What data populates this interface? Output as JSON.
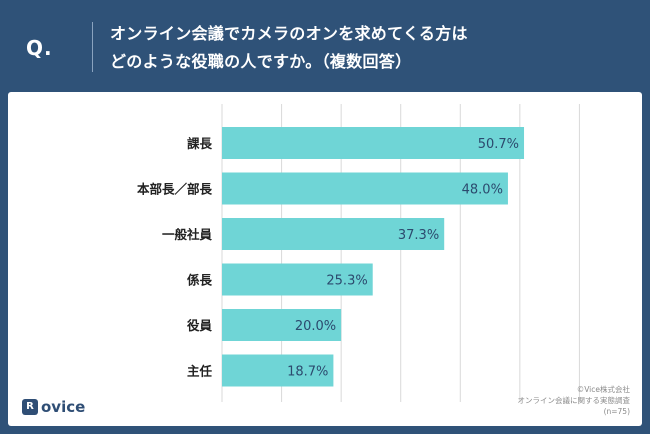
{
  "header": {
    "q_label": "Q.",
    "title_line1": "オンライン会議でカメラのオンを求めてくる方は",
    "title_line2": "どのような役職の人ですか。（複数回答）"
  },
  "chart_data": {
    "type": "bar",
    "orientation": "horizontal",
    "categories": [
      "課長",
      "本部長／部長",
      "一般社員",
      "係長",
      "役員",
      "主任"
    ],
    "values": [
      50.7,
      48.0,
      37.3,
      25.3,
      20.0,
      18.7
    ],
    "value_labels": [
      "50.7%",
      "48.0%",
      "37.3%",
      "25.3%",
      "20.0%",
      "18.7%"
    ],
    "xlim": [
      0,
      70
    ],
    "gridlines": [
      10,
      20,
      30,
      40,
      50,
      60
    ],
    "grid": true,
    "bar_color": "#6fd5d6",
    "label_color": "#2c4a6e"
  },
  "logo": {
    "mark": "R",
    "text": "ovice"
  },
  "source": {
    "line1": "©Vice株式会社",
    "line2": "オンライン会議に関する実態調査",
    "line3": "(n=75)"
  },
  "colors": {
    "header_bg": "#2f5278",
    "card_bg": "#ffffff"
  }
}
